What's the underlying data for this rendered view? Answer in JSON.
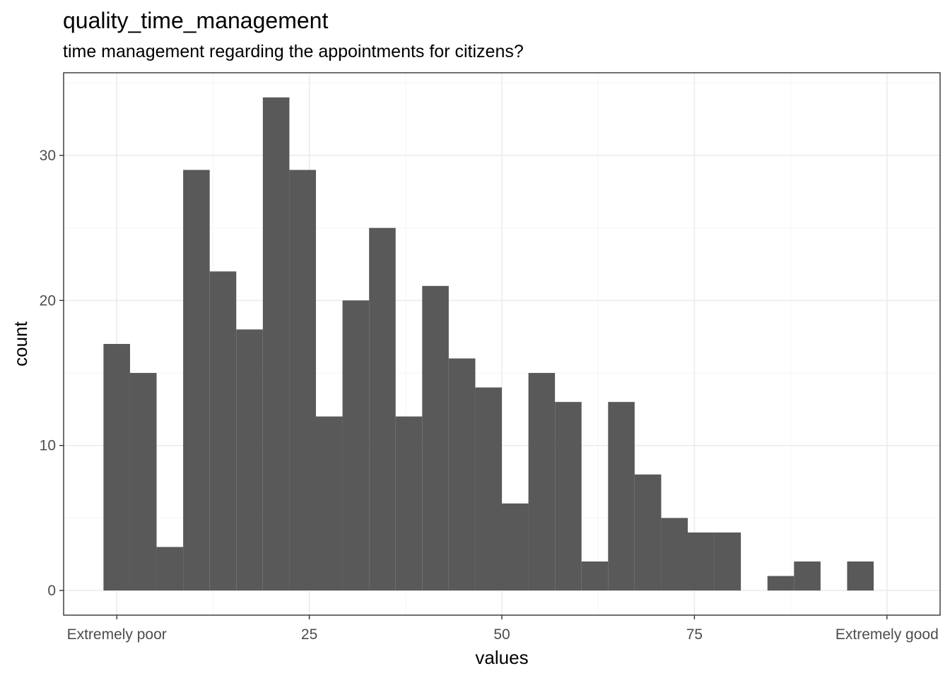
{
  "chart_data": {
    "type": "bar",
    "title": "quality_time_management",
    "subtitle": "time management regarding the appointments for citizens?",
    "xlabel": "values",
    "ylabel": "count",
    "bins": [
      {
        "x": 0,
        "count": 17
      },
      {
        "x": 3.448,
        "count": 15
      },
      {
        "x": 6.897,
        "count": 3
      },
      {
        "x": 10.345,
        "count": 29
      },
      {
        "x": 13.793,
        "count": 22
      },
      {
        "x": 17.241,
        "count": 18
      },
      {
        "x": 20.69,
        "count": 34
      },
      {
        "x": 24.138,
        "count": 29
      },
      {
        "x": 27.586,
        "count": 12
      },
      {
        "x": 31.034,
        "count": 20
      },
      {
        "x": 34.483,
        "count": 25
      },
      {
        "x": 37.931,
        "count": 12
      },
      {
        "x": 41.379,
        "count": 21
      },
      {
        "x": 44.828,
        "count": 16
      },
      {
        "x": 48.276,
        "count": 14
      },
      {
        "x": 51.724,
        "count": 6
      },
      {
        "x": 55.172,
        "count": 15
      },
      {
        "x": 58.621,
        "count": 13
      },
      {
        "x": 62.069,
        "count": 2
      },
      {
        "x": 65.517,
        "count": 13
      },
      {
        "x": 68.966,
        "count": 8
      },
      {
        "x": 72.414,
        "count": 5
      },
      {
        "x": 75.862,
        "count": 4
      },
      {
        "x": 79.31,
        "count": 4
      },
      {
        "x": 82.759,
        "count": 0
      },
      {
        "x": 86.207,
        "count": 1
      },
      {
        "x": 89.655,
        "count": 2
      },
      {
        "x": 93.103,
        "count": 0
      },
      {
        "x": 96.552,
        "count": 2
      },
      {
        "x": 100,
        "count": 0
      }
    ],
    "bin_width": 3.448,
    "xlim": [
      -6.9,
      106.9
    ],
    "ylim": [
      -1.7,
      35.7
    ],
    "x_ticks": [
      {
        "value": 0,
        "label": "Extremely poor"
      },
      {
        "value": 25,
        "label": "25"
      },
      {
        "value": 50,
        "label": "50"
      },
      {
        "value": 75,
        "label": "75"
      },
      {
        "value": 100,
        "label": "Extremely good"
      }
    ],
    "y_ticks": [
      {
        "value": 0,
        "label": "0"
      },
      {
        "value": 10,
        "label": "10"
      },
      {
        "value": 20,
        "label": "20"
      },
      {
        "value": 30,
        "label": "30"
      }
    ],
    "grid": true,
    "colors": {
      "bar": "#595959",
      "grid_major": "#ebebeb",
      "grid_minor": "#f5f5f5",
      "border": "#333333",
      "tick_text": "#4d4d4d"
    }
  }
}
